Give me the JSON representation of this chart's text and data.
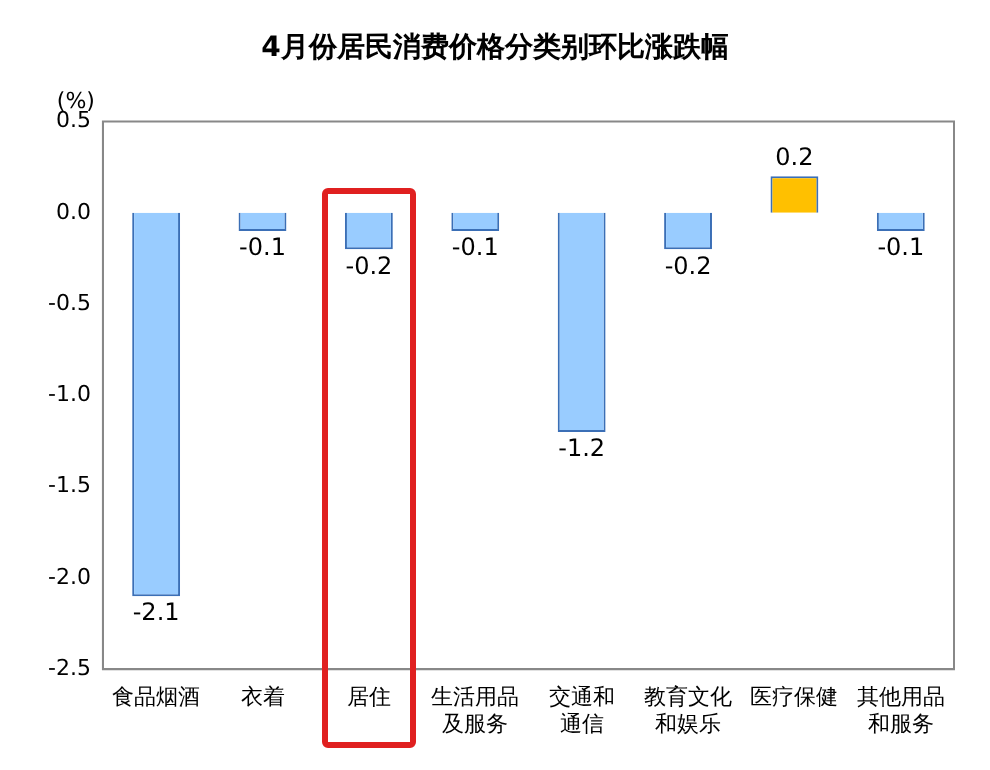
{
  "chart_data": {
    "type": "bar",
    "title": "4月份居民消费价格分类别环比涨跌幅",
    "ylabel": "(%)",
    "categories": [
      "食品烟酒",
      "衣着",
      "居住",
      "生活用品及服务",
      "交通和通信",
      "教育文化和娱乐",
      "医疗保健",
      "其他用品和服务"
    ],
    "values": [
      -2.1,
      -0.1,
      -0.2,
      -0.1,
      -1.2,
      -0.2,
      0.2,
      -0.1
    ],
    "colors": [
      "#99ccff",
      "#99ccff",
      "#99ccff",
      "#99ccff",
      "#99ccff",
      "#99ccff",
      "#ffc000",
      "#99ccff"
    ],
    "ylim": [
      -2.5,
      0.5
    ],
    "yticks": [
      0.5,
      {
        "value": 0,
        "label": "0.0"
      },
      -0.5,
      {
        "value": -1,
        "label": "-1.0"
      },
      -1.5,
      {
        "value": -2,
        "label": "-2.0"
      },
      -2.5
    ],
    "grid": false,
    "legend": false,
    "data_labels": true
  }
}
